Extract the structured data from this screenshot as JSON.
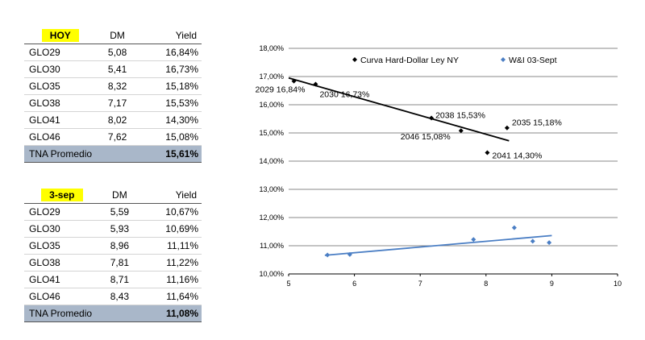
{
  "tables": [
    {
      "label": "HOY",
      "headers": [
        "DM",
        "Yield"
      ],
      "rows": [
        {
          "bond": "GLO29",
          "dm": "5,08",
          "yield": "16,84%"
        },
        {
          "bond": "GLO30",
          "dm": "5,41",
          "yield": "16,73%"
        },
        {
          "bond": "GLO35",
          "dm": "8,32",
          "yield": "15,18%"
        },
        {
          "bond": "GLO38",
          "dm": "7,17",
          "yield": "15,53%"
        },
        {
          "bond": "GLO41",
          "dm": "8,02",
          "yield": "14,30%"
        },
        {
          "bond": "GLO46",
          "dm": "7,62",
          "yield": "15,08%"
        }
      ],
      "avg_label": "TNA Promedio",
      "avg_value": "15,61%",
      "highlight_color": "#ffff00",
      "avg_color": "#a9b7c9"
    },
    {
      "label": "3-sep",
      "headers": [
        "DM",
        "Yield"
      ],
      "rows": [
        {
          "bond": "GLO29",
          "dm": "5,59",
          "yield": "10,67%"
        },
        {
          "bond": "GLO30",
          "dm": "5,93",
          "yield": "10,69%"
        },
        {
          "bond": "GLO35",
          "dm": "8,96",
          "yield": "11,11%"
        },
        {
          "bond": "GLO38",
          "dm": "7,81",
          "yield": "11,22%"
        },
        {
          "bond": "GLO41",
          "dm": "8,71",
          "yield": "11,16%"
        },
        {
          "bond": "GLO46",
          "dm": "8,43",
          "yield": "11,64%"
        }
      ],
      "avg_label": "TNA Promedio",
      "avg_value": "11,08%",
      "highlight_color": "#ffff00",
      "avg_color": "#a9b7c9"
    }
  ],
  "chart_data": {
    "type": "scatter",
    "xlim": [
      5,
      10
    ],
    "ylim": [
      10,
      18
    ],
    "xticks": [
      "5",
      "6",
      "7",
      "8",
      "9",
      "10"
    ],
    "yticks": [
      "10,00%",
      "11,00%",
      "12,00%",
      "13,00%",
      "14,00%",
      "15,00%",
      "16,00%",
      "17,00%",
      "18,00%"
    ],
    "grid": "horizontal",
    "legend_position": "top",
    "series": [
      {
        "name": "Curva Hard-Dollar Ley NY",
        "color": "#000000",
        "marker": "diamond",
        "points": [
          {
            "x": 5.08,
            "y": 16.84,
            "label": "2029 16,84%"
          },
          {
            "x": 5.41,
            "y": 16.73,
            "label": "2030 16,73%"
          },
          {
            "x": 8.32,
            "y": 15.18,
            "label": "2035 15,18%"
          },
          {
            "x": 7.17,
            "y": 15.53,
            "label": "2038 15,53%"
          },
          {
            "x": 8.02,
            "y": 14.3,
            "label": "2041 14,30%"
          },
          {
            "x": 7.62,
            "y": 15.08,
            "label": "2046 15,08%"
          }
        ],
        "trend": [
          [
            5.0,
            16.95
          ],
          [
            8.35,
            14.72
          ]
        ]
      },
      {
        "name": "W&I 03-Sept",
        "color": "#4a7ec4",
        "marker": "diamond",
        "points": [
          {
            "x": 5.59,
            "y": 10.67
          },
          {
            "x": 5.93,
            "y": 10.69
          },
          {
            "x": 8.96,
            "y": 11.11
          },
          {
            "x": 7.81,
            "y": 11.22
          },
          {
            "x": 8.71,
            "y": 11.16
          },
          {
            "x": 8.43,
            "y": 11.64
          }
        ],
        "trend": [
          [
            5.55,
            10.66
          ],
          [
            9.0,
            11.36
          ]
        ]
      }
    ]
  }
}
